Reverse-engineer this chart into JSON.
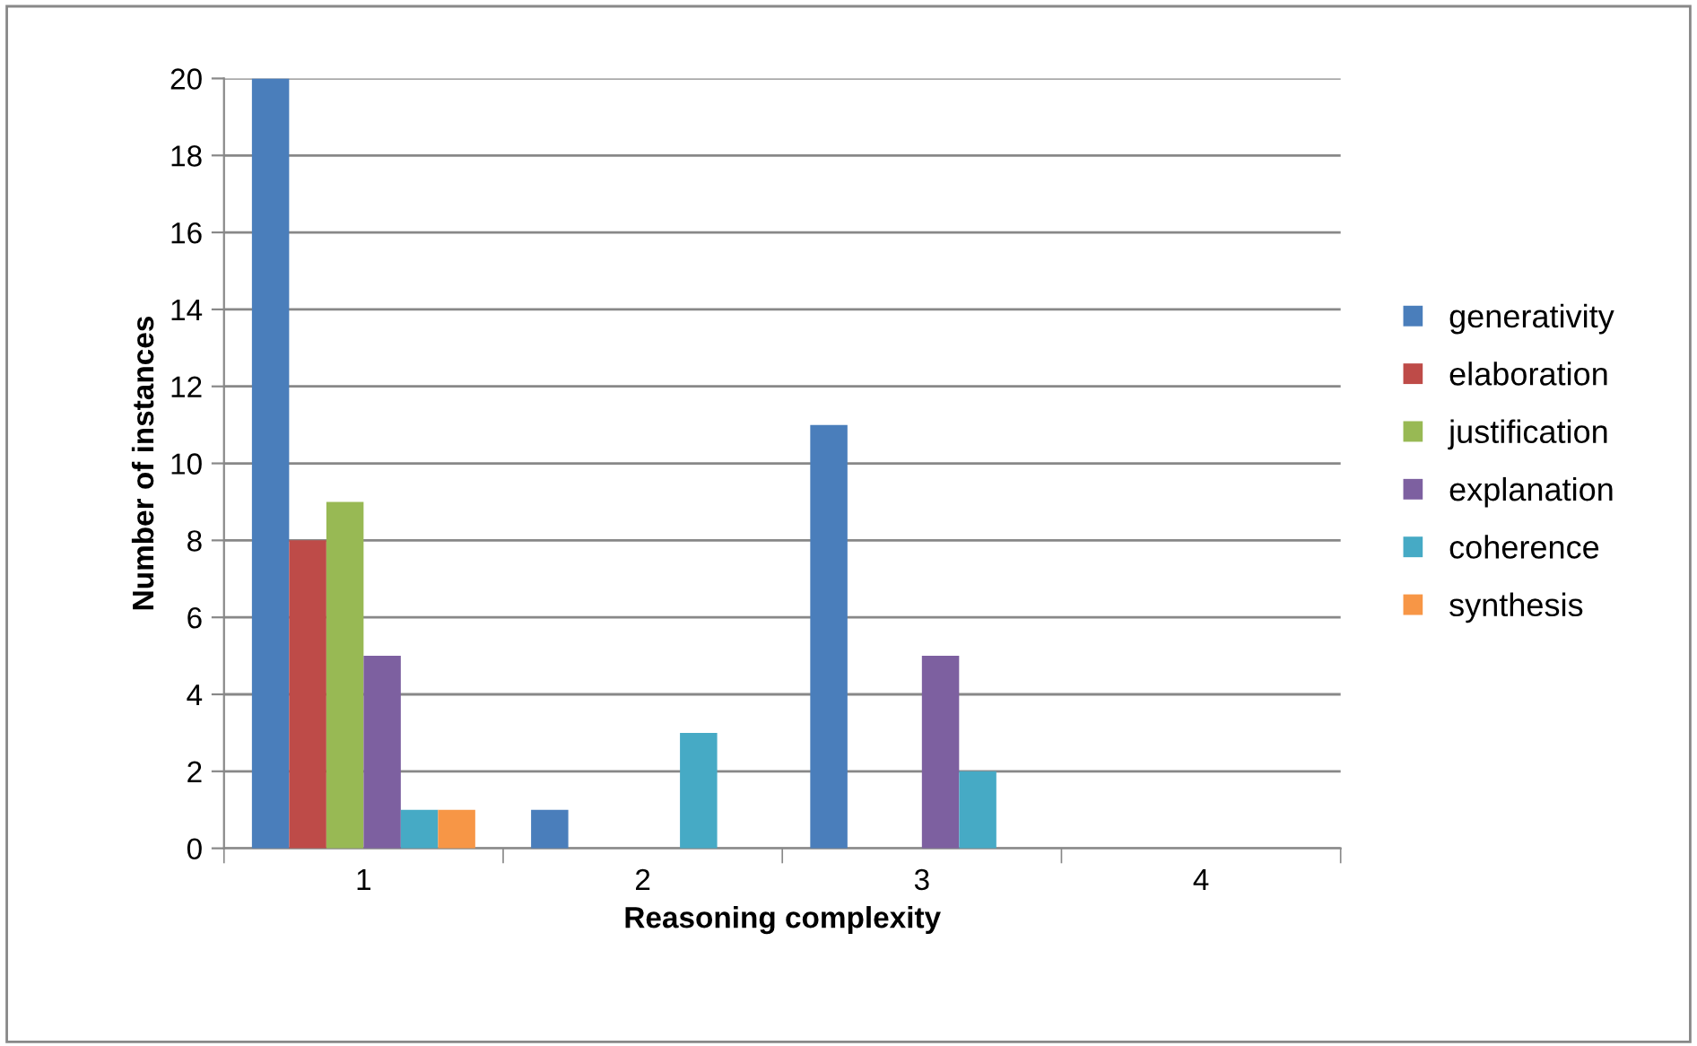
{
  "chart_data": {
    "type": "bar",
    "xlabel": "Reasoning complexity",
    "ylabel": "Number of instances",
    "categories": [
      "1",
      "2",
      "3",
      "4"
    ],
    "series": [
      {
        "name": "generativity",
        "color": "#4a7ebb",
        "values": [
          20,
          1,
          11,
          0
        ]
      },
      {
        "name": "elaboration",
        "color": "#be4b48",
        "values": [
          8,
          0,
          0,
          0
        ]
      },
      {
        "name": "justification",
        "color": "#98b954",
        "values": [
          9,
          0,
          0,
          0
        ]
      },
      {
        "name": "explanation",
        "color": "#7d60a0",
        "values": [
          5,
          0,
          5,
          0
        ]
      },
      {
        "name": "coherence",
        "color": "#46aac5",
        "values": [
          1,
          3,
          2,
          0
        ]
      },
      {
        "name": "synthesis",
        "color": "#f79646",
        "values": [
          1,
          0,
          0,
          0
        ]
      }
    ],
    "ylim": [
      0,
      20
    ],
    "yticks": [
      0,
      2,
      4,
      6,
      8,
      10,
      12,
      14,
      16,
      18,
      20
    ],
    "grid": "y",
    "legend": "right"
  }
}
